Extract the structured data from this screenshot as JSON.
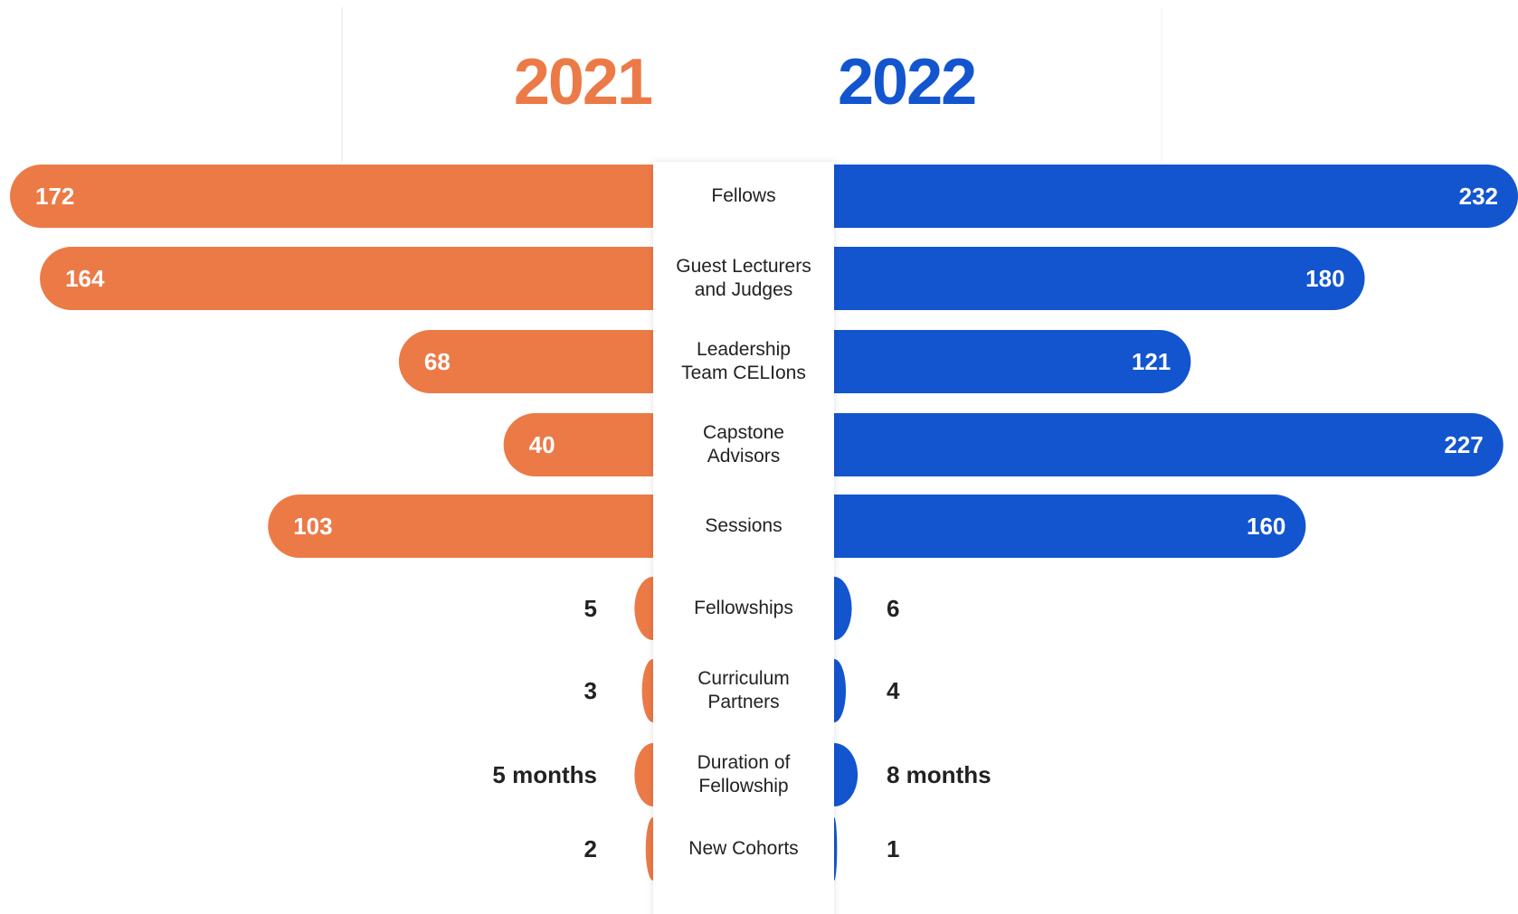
{
  "chart_data": {
    "type": "butterfly-bar",
    "categories": [
      "Fellows",
      "Guest Lecturers and Judges",
      "Leadership Team CELIons",
      "Capstone Advisors",
      "Sessions",
      "Fellowships",
      "Curriculum Partners",
      "Duration of Fellowship",
      "New Cohorts"
    ],
    "series": [
      {
        "name": "2021",
        "color": "#ec7a47",
        "xlim": [
          0,
          172
        ],
        "values": [
          172,
          164,
          68,
          40,
          103,
          5,
          3,
          5,
          2
        ],
        "value_labels": [
          "172",
          "164",
          "68",
          "40",
          "103",
          "5",
          "3",
          "5 months",
          "2"
        ]
      },
      {
        "name": "2022",
        "color": "#1255cf",
        "xlim": [
          0,
          232
        ],
        "values": [
          232,
          180,
          121,
          227,
          160,
          6,
          4,
          8,
          1
        ],
        "value_labels": [
          "232",
          "180",
          "121",
          "227",
          "160",
          "6",
          "4",
          "8 months",
          "1"
        ]
      }
    ]
  }
}
